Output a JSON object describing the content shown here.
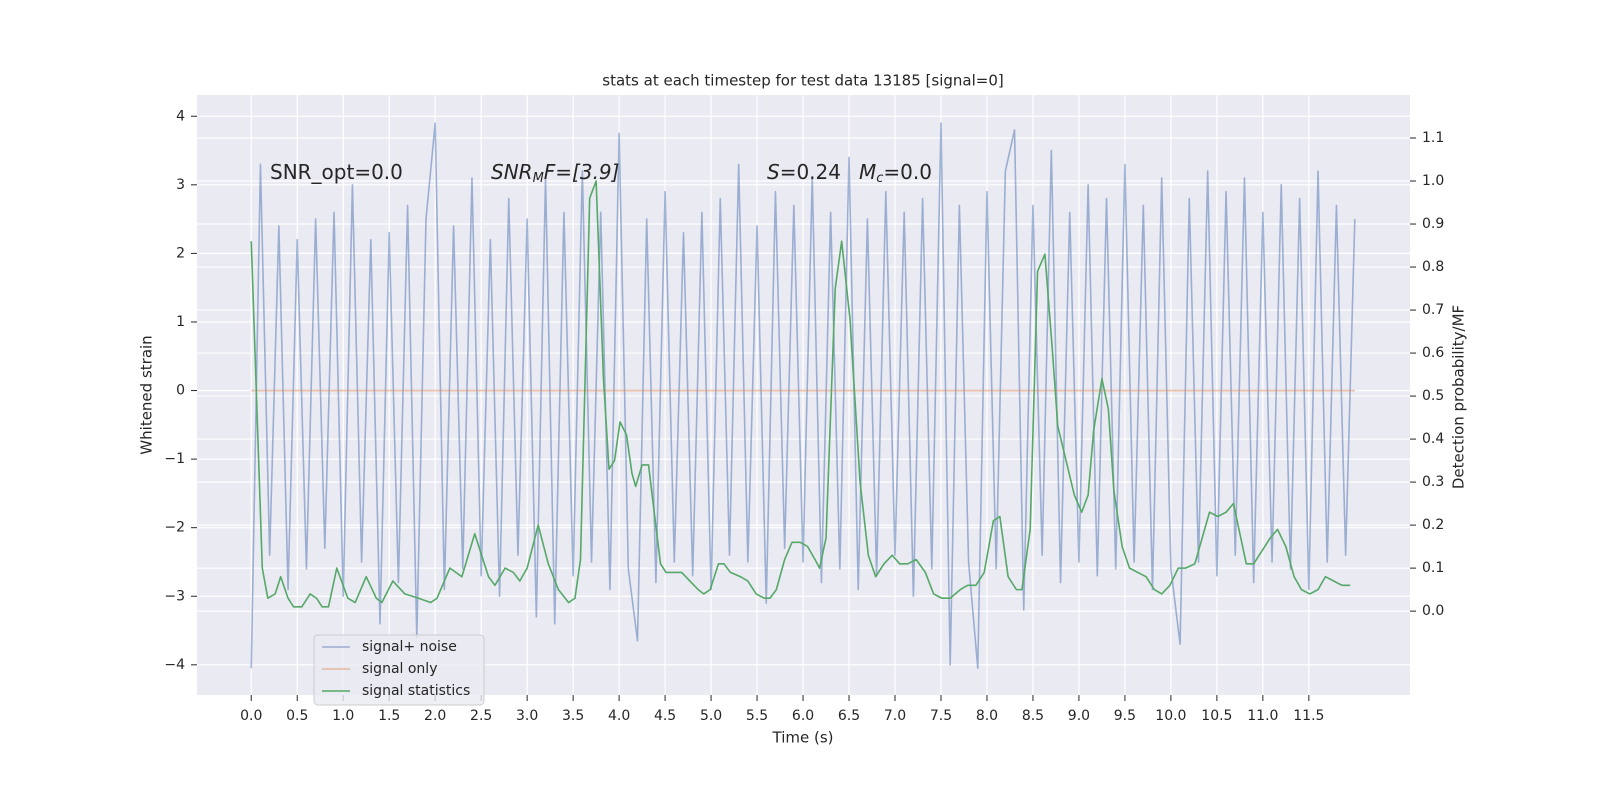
{
  "chart_data": {
    "type": "line",
    "title": "stats at each timestep for test data 13185 [signal=0]",
    "xlabel": "Time (s)",
    "ylabel": "Whitened strain",
    "y2label": "Detection probability/MF",
    "xlim": [
      -0.59,
      12.6
    ],
    "ylim": [
      -4.44,
      4.31
    ],
    "y2lim": [
      -0.195,
      1.2
    ],
    "xticks": [
      {
        "value": 0,
        "label": "0.0"
      },
      0.5,
      {
        "value": 1,
        "label": "1.0"
      },
      1.5,
      {
        "value": 2,
        "label": "2.0"
      },
      2.5,
      {
        "value": 3,
        "label": "3.0"
      },
      3.5,
      {
        "value": 4,
        "label": "4.0"
      },
      4.5,
      {
        "value": 5,
        "label": "5.0"
      },
      5.5,
      {
        "value": 6,
        "label": "6.0"
      },
      6.5,
      {
        "value": 7,
        "label": "7.0"
      },
      7.5,
      {
        "value": 8,
        "label": "8.0"
      },
      8.5,
      {
        "value": 9,
        "label": "9.0"
      },
      9.5,
      {
        "value": 10,
        "label": "10.0"
      },
      10.5,
      {
        "value": 11,
        "label": "11.0"
      },
      11.5
    ],
    "yticks": [
      {
        "value": -4,
        "label": "−4"
      },
      {
        "value": -3,
        "label": "−3"
      },
      {
        "value": -2,
        "label": "−2"
      },
      {
        "value": -1,
        "label": "−1"
      },
      0,
      1,
      2,
      3,
      4
    ],
    "y2ticks": [
      {
        "value": 0,
        "label": "0.0"
      },
      0.1,
      0.2,
      0.3,
      0.4,
      0.5,
      0.6,
      0.7,
      0.8,
      0.9,
      {
        "value": 1,
        "label": "1.0"
      },
      1.1
    ],
    "grid": true,
    "legend": "lower left",
    "annotations": [
      [
        "SNR_opt=0.0"
      ],
      [
        "SNR",
        "M",
        "F=[3.9]"
      ],
      [
        "S",
        "=0.24"
      ],
      [
        "M",
        "c",
        "=0.0"
      ]
    ],
    "series": [
      {
        "name": "signal+ noise",
        "color": "#4c72b0",
        "x": [
          0,
          0.1,
          0.2,
          0.3,
          0.4,
          0.5,
          0.6,
          0.7,
          0.8,
          0.9,
          1,
          1.1,
          1.2,
          1.3,
          1.4,
          1.5,
          1.6,
          1.7,
          1.8,
          1.9,
          2,
          2.1,
          2.2,
          2.3,
          2.4,
          2.5,
          2.6,
          2.7,
          2.8,
          2.9,
          3,
          3.1,
          3.2,
          3.3,
          3.4,
          3.5,
          3.6,
          3.7,
          3.8,
          3.9,
          4,
          4.1,
          4.2,
          4.3,
          4.4,
          4.5,
          4.6,
          4.7,
          4.8,
          4.9,
          5,
          5.1,
          5.2,
          5.3,
          5.4,
          5.5,
          5.6,
          5.7,
          5.8,
          5.9,
          6,
          6.1,
          6.2,
          6.3,
          6.4,
          6.5,
          6.6,
          6.7,
          6.8,
          6.9,
          7,
          7.1,
          7.2,
          7.3,
          7.4,
          7.5,
          7.6,
          7.7,
          7.8,
          7.9,
          8,
          8.1,
          8.2,
          8.3,
          8.4,
          8.5,
          8.6,
          8.7,
          8.8,
          8.9,
          9,
          9.1,
          9.2,
          9.3,
          9.4,
          9.5,
          9.6,
          9.7,
          9.8,
          9.9,
          10,
          10.1,
          10.2,
          10.3,
          10.4,
          10.5,
          10.6,
          10.7,
          10.8,
          10.9,
          11,
          11.1,
          11.2,
          11.3,
          11.4,
          11.5,
          11.6,
          11.7,
          11.8,
          11.9,
          12
        ],
        "values": [
          -4.05,
          3.3,
          -2.4,
          2.4,
          -2.9,
          2.2,
          -2.6,
          2.5,
          -2.3,
          2.6,
          -3.0,
          3.0,
          -2.5,
          2.2,
          -3.4,
          2.3,
          -2.8,
          2.7,
          -3.6,
          2.5,
          3.9,
          -2.9,
          2.4,
          -2.6,
          3.1,
          -2.7,
          2.2,
          -3.0,
          2.8,
          -2.4,
          2.5,
          -3.3,
          3.1,
          -3.4,
          2.6,
          -2.7,
          3.2,
          -2.5,
          2.6,
          -2.9,
          3.75,
          -2.6,
          -3.65,
          2.5,
          -2.8,
          2.9,
          -2.5,
          2.3,
          -2.7,
          2.6,
          -2.9,
          2.8,
          -2.4,
          3.3,
          -2.5,
          2.4,
          -3.1,
          2.9,
          -2.3,
          2.7,
          -2.5,
          3.1,
          -2.8,
          2.6,
          -2.6,
          3.4,
          -2.9,
          2.5,
          -2.7,
          2.9,
          -2.4,
          2.6,
          -3.0,
          2.8,
          -2.6,
          3.9,
          -4.0,
          2.7,
          -2.5,
          -4.05,
          2.9,
          -2.6,
          3.2,
          3.8,
          -3.2,
          2.7,
          -2.4,
          3.5,
          -2.8,
          2.6,
          -2.5,
          3.0,
          -2.7,
          2.8,
          -2.6,
          3.3,
          -2.5,
          2.7,
          -2.9,
          3.1,
          -2.6,
          -3.7,
          2.8,
          -2.5,
          3.2,
          -2.7,
          2.9,
          -2.4,
          3.1,
          -2.8,
          2.6,
          -2.5,
          3.0,
          -2.6,
          2.8,
          -2.9,
          3.2,
          -2.5,
          2.7,
          -2.4,
          2.5
        ]
      },
      {
        "name": "signal only",
        "color": "#dd8452",
        "x": [
          0,
          12
        ],
        "values": [
          0,
          0
        ]
      },
      {
        "name": "signal statistics",
        "color": "#55a868",
        "axis": "y2",
        "x": [
          0,
          0.12,
          0.18,
          0.26,
          0.32,
          0.4,
          0.46,
          0.55,
          0.64,
          0.71,
          0.77,
          0.84,
          0.93,
          1.05,
          1.13,
          1.25,
          1.36,
          1.42,
          1.54,
          1.67,
          1.82,
          1.95,
          2.02,
          2.16,
          2.29,
          2.43,
          2.58,
          2.65,
          2.76,
          2.85,
          2.92,
          3,
          3.12,
          3.23,
          3.34,
          3.45,
          3.52,
          3.58,
          3.68,
          3.75,
          3.83,
          3.89,
          3.95,
          4.01,
          4.08,
          4.14,
          4.18,
          4.25,
          4.32,
          4.37,
          4.45,
          4.51,
          4.59,
          4.68,
          4.77,
          4.86,
          4.92,
          4.99,
          5.08,
          5.14,
          5.21,
          5.32,
          5.4,
          5.49,
          5.58,
          5.64,
          5.71,
          5.8,
          5.88,
          5.97,
          6.05,
          6.13,
          6.18,
          6.25,
          6.35,
          6.42,
          6.51,
          6.62,
          6.71,
          6.79,
          6.88,
          6.97,
          7.05,
          7.14,
          7.23,
          7.33,
          7.42,
          7.51,
          7.6,
          7.71,
          7.79,
          7.88,
          7.97,
          8.07,
          8.14,
          8.23,
          8.32,
          8.38,
          8.47,
          8.55,
          8.63,
          8.71,
          8.77,
          8.86,
          8.95,
          9.03,
          9.1,
          9.16,
          9.25,
          9.32,
          9.38,
          9.47,
          9.55,
          9.64,
          9.73,
          9.82,
          9.9,
          9.99,
          10.08,
          10.16,
          10.26,
          10.34,
          10.42,
          10.51,
          10.6,
          10.68,
          10.75,
          10.82,
          10.9,
          10.99,
          11.08,
          11.16,
          11.25,
          11.34,
          11.42,
          11.51,
          11.6,
          11.68,
          11.77,
          11.86,
          11.95
        ],
        "values": [
          0.86,
          0.1,
          0.03,
          0.04,
          0.08,
          0.03,
          0.01,
          0.01,
          0.04,
          0.03,
          0.01,
          0.01,
          0.1,
          0.03,
          0.02,
          0.08,
          0.03,
          0.02,
          0.07,
          0.04,
          0.03,
          0.02,
          0.03,
          0.1,
          0.08,
          0.18,
          0.08,
          0.06,
          0.1,
          0.09,
          0.07,
          0.1,
          0.2,
          0.11,
          0.05,
          0.02,
          0.03,
          0.12,
          0.96,
          1.0,
          0.54,
          0.33,
          0.35,
          0.44,
          0.41,
          0.32,
          0.29,
          0.34,
          0.34,
          0.25,
          0.11,
          0.09,
          0.09,
          0.09,
          0.07,
          0.05,
          0.04,
          0.05,
          0.11,
          0.11,
          0.09,
          0.08,
          0.07,
          0.04,
          0.03,
          0.03,
          0.05,
          0.12,
          0.16,
          0.16,
          0.15,
          0.12,
          0.1,
          0.17,
          0.75,
          0.86,
          0.68,
          0.3,
          0.13,
          0.08,
          0.11,
          0.13,
          0.11,
          0.11,
          0.12,
          0.09,
          0.04,
          0.03,
          0.03,
          0.05,
          0.06,
          0.06,
          0.09,
          0.21,
          0.22,
          0.08,
          0.05,
          0.05,
          0.19,
          0.79,
          0.83,
          0.61,
          0.43,
          0.35,
          0.27,
          0.23,
          0.27,
          0.42,
          0.54,
          0.47,
          0.28,
          0.15,
          0.1,
          0.09,
          0.08,
          0.05,
          0.04,
          0.06,
          0.1,
          0.1,
          0.11,
          0.17,
          0.23,
          0.22,
          0.23,
          0.25,
          0.18,
          0.11,
          0.11,
          0.14,
          0.17,
          0.19,
          0.15,
          0.08,
          0.05,
          0.04,
          0.05,
          0.08,
          0.07,
          0.06,
          0.06
        ]
      }
    ]
  }
}
